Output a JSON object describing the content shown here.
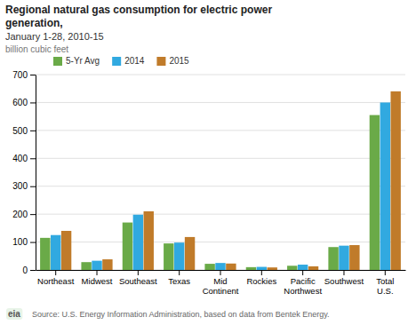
{
  "chart_data": {
    "type": "bar",
    "title": [
      "Regional natural gas consumption for electric power",
      "generation,"
    ],
    "subtitle": "January 1-28, 2010-15",
    "ylabel": "billion cubic feet",
    "annotations": [
      "Source: U.S. Energy Information Administration, based on data from Bentek Energy.",
      "eia"
    ],
    "categories": [
      "Northeast",
      "Midwest",
      "Southeast",
      "Texas",
      "Mid\nContinent",
      "Rockies",
      "Pacific\nNorthwest",
      "Southwest",
      "Total\nU.S."
    ],
    "series": [
      {
        "name": "5-Yr Avg",
        "color": "#6aaa48",
        "values": [
          115,
          28,
          170,
          95,
          22,
          10,
          15,
          82,
          555
        ]
      },
      {
        "name": "2014",
        "color": "#31a9e0",
        "values": [
          125,
          33,
          198,
          98,
          25,
          11,
          19,
          87,
          600
        ]
      },
      {
        "name": "2015",
        "color": "#c07b2a",
        "values": [
          140,
          38,
          210,
          118,
          23,
          9,
          13,
          89,
          640
        ]
      }
    ],
    "ylim": [
      0,
      700
    ],
    "yticks": [
      0,
      100,
      200,
      300,
      400,
      500,
      600,
      700
    ],
    "grid": true,
    "legend": "upper left"
  }
}
